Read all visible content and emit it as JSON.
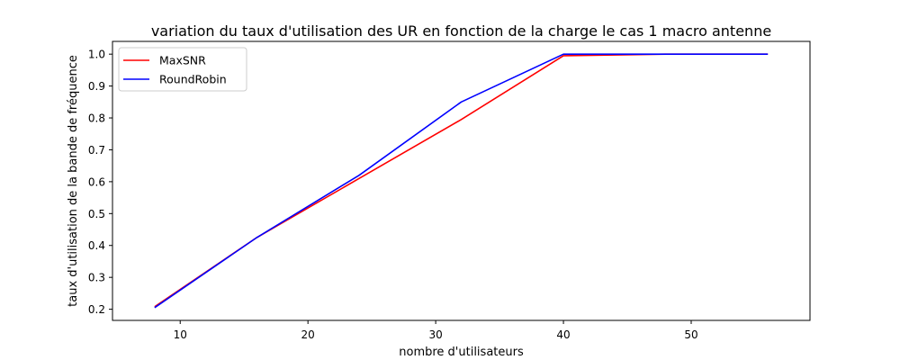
{
  "chart_data": {
    "type": "line",
    "title": "variation du taux d'utilisation des UR en fonction de la charge le cas 1 macro antenne",
    "xlabel": "nombre d'utilisateurs",
    "ylabel": "taux d'utilisation de la bande de fréquence",
    "xlim": [
      4.7,
      59.3
    ],
    "ylim": [
      0.165,
      1.04
    ],
    "xticks": [
      10,
      20,
      30,
      40,
      50
    ],
    "yticks": [
      0.2,
      0.3,
      0.4,
      0.5,
      0.6,
      0.7,
      0.8,
      0.9,
      1.0
    ],
    "x": [
      8,
      16,
      24,
      32,
      40,
      48,
      56
    ],
    "series": [
      {
        "name": "MaxSNR",
        "color": "#ff0000",
        "values": [
          0.208,
          0.425,
          0.61,
          0.795,
          0.995,
          1.0,
          1.0
        ]
      },
      {
        "name": "RoundRobin",
        "color": "#0000ff",
        "values": [
          0.205,
          0.425,
          0.62,
          0.85,
          1.0,
          1.0,
          1.0
        ]
      }
    ],
    "legend_position": "upper-left",
    "grid": false
  }
}
